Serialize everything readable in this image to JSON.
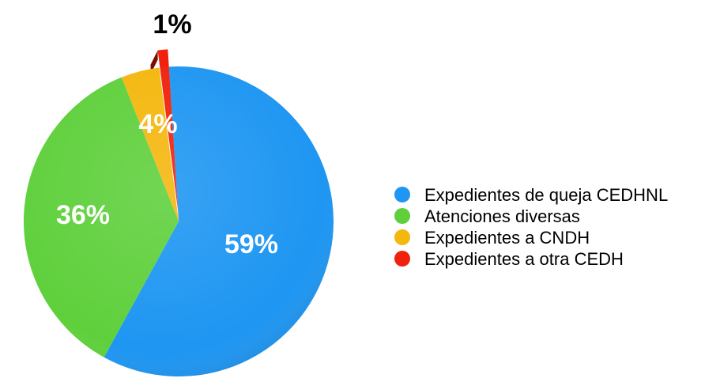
{
  "chart_data": {
    "type": "pie",
    "title": "",
    "slices": [
      {
        "name": "Expedientes de queja CEDHNL",
        "value": 59,
        "label": "59%",
        "color": "#1e96f2"
      },
      {
        "name": "Atenciones diversas",
        "value": 36,
        "label": "36%",
        "color": "#5fd03c"
      },
      {
        "name": "Expedientes a CNDH",
        "value": 4,
        "label": "4%",
        "color": "#f4b70e"
      },
      {
        "name": "Expedientes a otra CEDH",
        "value": 1,
        "label": "1%",
        "color": "#f0220d",
        "exploded": true
      }
    ],
    "legend_position": "right"
  }
}
